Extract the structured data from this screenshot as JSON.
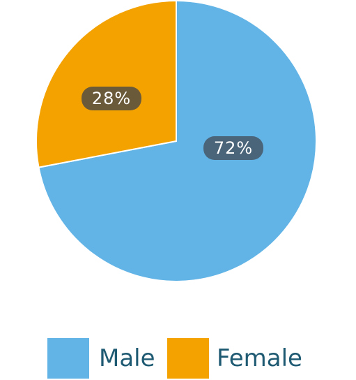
{
  "chart_data": {
    "type": "pie",
    "categories": [
      "Male",
      "Female"
    ],
    "values": [
      72,
      28
    ],
    "labels": [
      "72%",
      "28%"
    ],
    "colors": [
      "#62b4e6",
      "#f4a200"
    ],
    "label_badge_colors": [
      "#4a657a",
      "#6b5a3a"
    ],
    "legend_position": "bottom",
    "start_angle_deg": 0,
    "direction": "clockwise"
  },
  "legend": {
    "items": [
      {
        "label": "Male",
        "color": "#62b4e6"
      },
      {
        "label": "Female",
        "color": "#f4a200"
      }
    ]
  }
}
